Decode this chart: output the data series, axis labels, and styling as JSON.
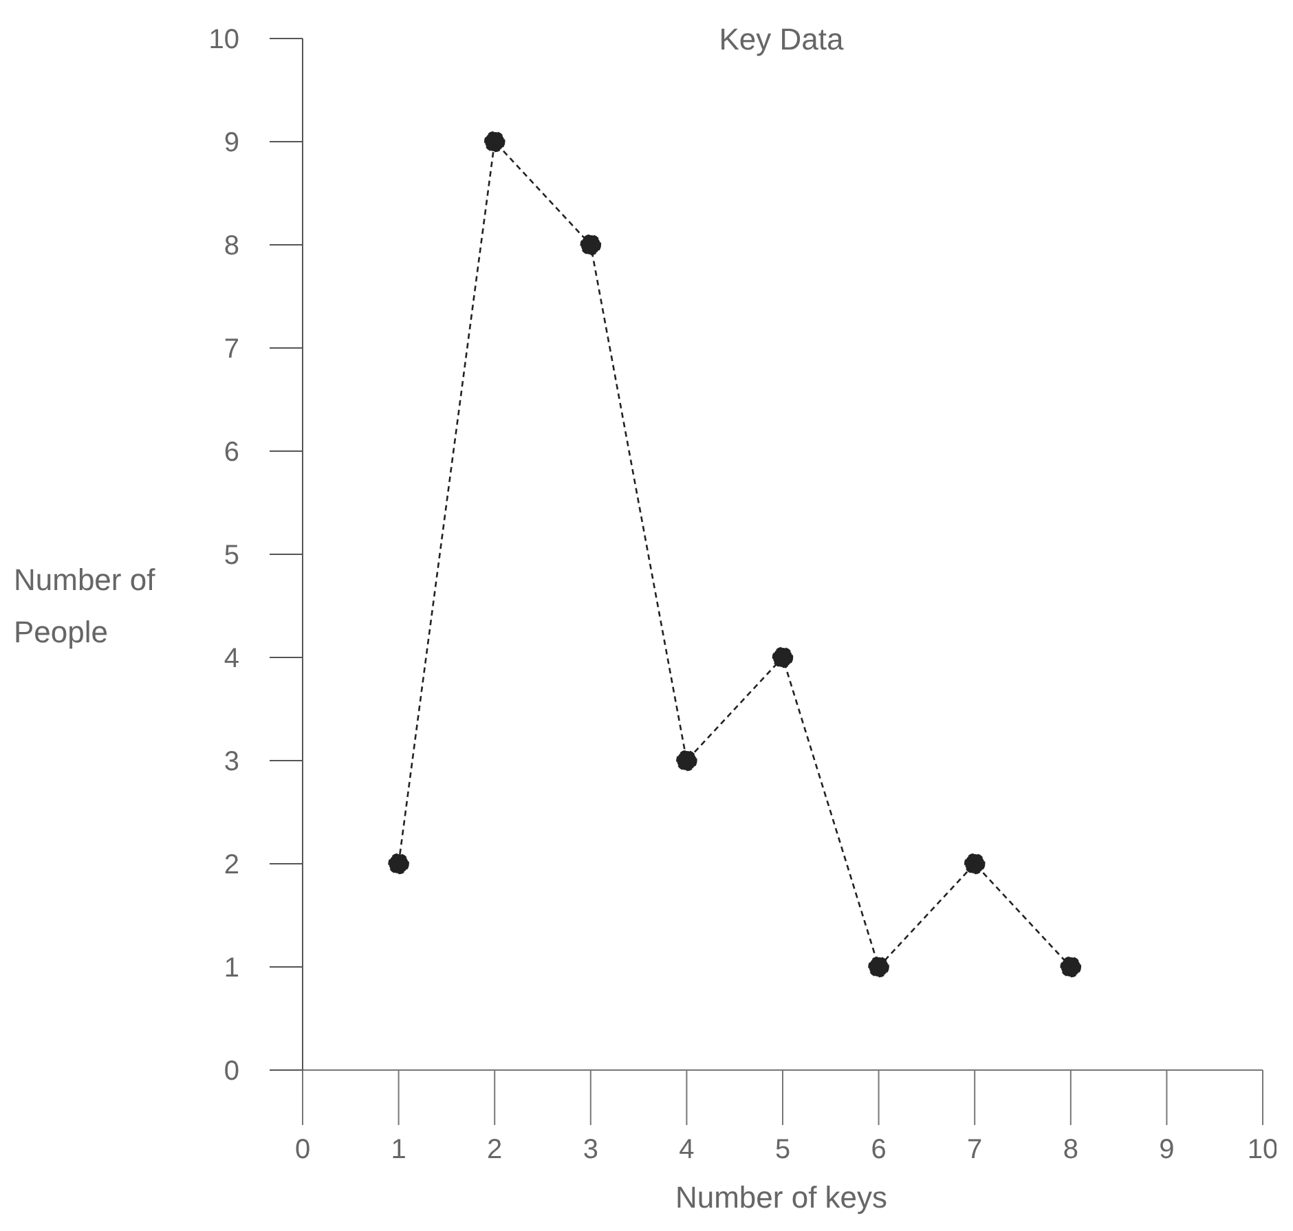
{
  "chart_data": {
    "type": "line",
    "title": "Key Data",
    "xlabel": "Number of keys",
    "ylabel": "Number of People",
    "x": [
      1,
      2,
      3,
      4,
      5,
      6,
      7,
      8
    ],
    "series": [
      {
        "color": "#222222",
        "values": [
          2,
          9,
          8,
          3,
          4,
          1,
          2,
          1
        ]
      }
    ],
    "xlim": [
      0,
      10
    ],
    "xticks": [
      0,
      1,
      2,
      3,
      4,
      5,
      6,
      7,
      8,
      9,
      10
    ],
    "ylim": [
      0,
      10
    ],
    "yticks": [
      0,
      1,
      2,
      3,
      4,
      5,
      6,
      7,
      8,
      9,
      10
    ],
    "marker": "circle",
    "line_style": "dashed",
    "grid": false,
    "legend": false
  }
}
